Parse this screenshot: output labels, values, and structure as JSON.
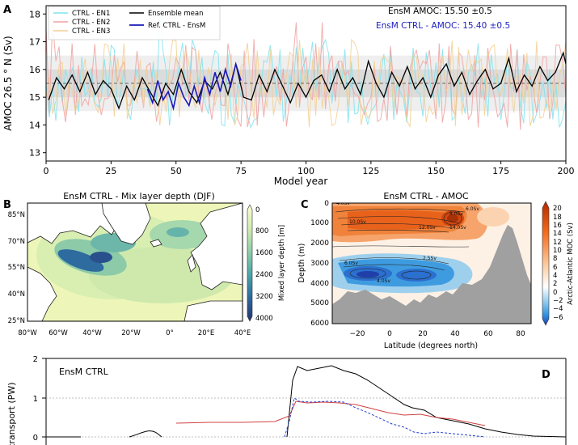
{
  "panels": {
    "a": "A",
    "b": "B",
    "c": "C",
    "d": "D"
  },
  "panel_a": {
    "ylabel": "AMOC 26.5 ° N (Sv)",
    "xlabel": "Model year",
    "xticks": [
      0,
      25,
      50,
      75,
      100,
      125,
      150,
      175,
      200
    ],
    "yticks": [
      13,
      14,
      15,
      16,
      17,
      18
    ],
    "legend": {
      "items": [
        {
          "label": "CTRL - EN1",
          "color": "#7fe3ee"
        },
        {
          "label": "CTRL - EN2",
          "color": "#f0a0a0"
        },
        {
          "label": "CTRL - EN3",
          "color": "#f2cf90"
        },
        {
          "label": "Ensemble mean",
          "color": "#000000"
        },
        {
          "label": "Ref. CTRL - EnsM",
          "color": "#1a1ab8"
        }
      ]
    },
    "annotation1": "EnsM AMOC: 15.50 ±0.5",
    "annotation2": "EnsM CTRL - AMOC: 15.40 ±0.5",
    "annotation2_color": "#1c1cc0"
  },
  "panel_b": {
    "title": "EnsM CTRL - Mix layer depth (DJF)",
    "lat_labels": [
      "85°N",
      "70°N",
      "55°N",
      "40°N",
      "25°N"
    ],
    "lon_labels": [
      "80°W",
      "60°W",
      "40°W",
      "20°W",
      "0°",
      "20°E",
      "40°E"
    ],
    "cbar_label": "Mixed layer depth [m]",
    "cbar_ticks": [
      "0",
      "800",
      "1600",
      "2400",
      "3200",
      "4000"
    ]
  },
  "panel_c": {
    "title": "EnsM CTRL - AMOC",
    "ylabel": "Depth (m)",
    "xlabel": "Latitude (degrees north)",
    "yticks": [
      "0",
      "1000",
      "2000",
      "3000",
      "4000",
      "5000",
      "6000"
    ],
    "xticks": [
      "−20",
      "0",
      "20",
      "40",
      "60",
      "80"
    ],
    "cbar_label": "Arctic-Atlantic MOC (Sv)",
    "cbar_ticks": [
      "20",
      "18",
      "16",
      "14",
      "12",
      "10",
      "8",
      "6",
      "4",
      "2",
      "0",
      "−2",
      "−4",
      "−6"
    ],
    "contour_labels": [
      "4.0Sv",
      "6.0Sv",
      "8.0Sv",
      "10.0Sv",
      "12.0Sv",
      "14.0Sv",
      "2.5Sv",
      "4.0Sv",
      "6.0Sv"
    ]
  },
  "panel_d": {
    "ylabel": "at transport (PW)",
    "label": "EnsM CTRL",
    "yticks": [
      "2",
      "1",
      "0"
    ]
  },
  "chart_data": {
    "type": "line",
    "title": "",
    "xlabel": "Model year",
    "ylabel": "AMOC 26.5 ° N (Sv)",
    "xlim": [
      0,
      200
    ],
    "ylim": [
      12.7,
      18.3
    ],
    "reference_line": 15.5,
    "bands": [
      {
        "lo": 15.0,
        "hi": 16.0
      },
      {
        "lo": 14.5,
        "hi": 16.5
      }
    ],
    "ensemble_mean": {
      "name": "Ensemble mean",
      "x": [
        1,
        4,
        7,
        10,
        13,
        16,
        19,
        22,
        25,
        28,
        31,
        34,
        37,
        40,
        43,
        46,
        49,
        52,
        55,
        58,
        61,
        64,
        67,
        70,
        73,
        76,
        79,
        82,
        85,
        88,
        91,
        94,
        97,
        100,
        103,
        106,
        109,
        112,
        115,
        118,
        121,
        124,
        127,
        130,
        133,
        136,
        139,
        142,
        145,
        148,
        151,
        154,
        157,
        160,
        163,
        166,
        169,
        172,
        175,
        178,
        181,
        184,
        187,
        190,
        193,
        196,
        199,
        200
      ],
      "values": [
        14.9,
        15.7,
        15.3,
        15.8,
        15.2,
        15.9,
        15.1,
        15.6,
        15.3,
        14.6,
        15.4,
        14.9,
        15.7,
        15.2,
        14.7,
        15.5,
        15.1,
        16.0,
        15.2,
        14.8,
        15.6,
        15.3,
        15.9,
        15.1,
        16.2,
        15.0,
        14.9,
        15.8,
        15.2,
        16.0,
        15.4,
        14.8,
        15.5,
        15.0,
        15.6,
        15.8,
        15.2,
        16.0,
        15.3,
        15.7,
        15.1,
        16.3,
        15.5,
        15.0,
        15.9,
        15.4,
        16.1,
        15.3,
        15.7,
        15.0,
        15.8,
        16.2,
        15.4,
        15.9,
        15.1,
        15.6,
        16.0,
        15.3,
        15.5,
        16.4,
        15.2,
        15.8,
        15.4,
        16.1,
        15.6,
        15.9,
        16.6,
        16.2
      ]
    },
    "reference_segment": {
      "name": "Ref. CTRL - EnsM",
      "x": [
        39,
        41,
        43,
        45,
        47,
        49,
        51,
        53,
        55,
        57,
        59,
        61,
        63,
        65,
        67,
        69,
        71,
        73,
        75
      ],
      "values": [
        15.3,
        14.8,
        15.6,
        14.9,
        15.2,
        14.6,
        15.5,
        15.0,
        14.7,
        15.4,
        14.8,
        15.7,
        15.1,
        15.9,
        15.2,
        16.0,
        15.4,
        16.2,
        15.6
      ]
    },
    "members": [
      {
        "name": "CTRL - EN1",
        "approx_range": [
          13.9,
          18.0
        ]
      },
      {
        "name": "CTRL - EN2",
        "approx_range": [
          13.4,
          17.7
        ]
      },
      {
        "name": "CTRL - EN3",
        "approx_range": [
          13.6,
          17.3
        ]
      }
    ]
  }
}
